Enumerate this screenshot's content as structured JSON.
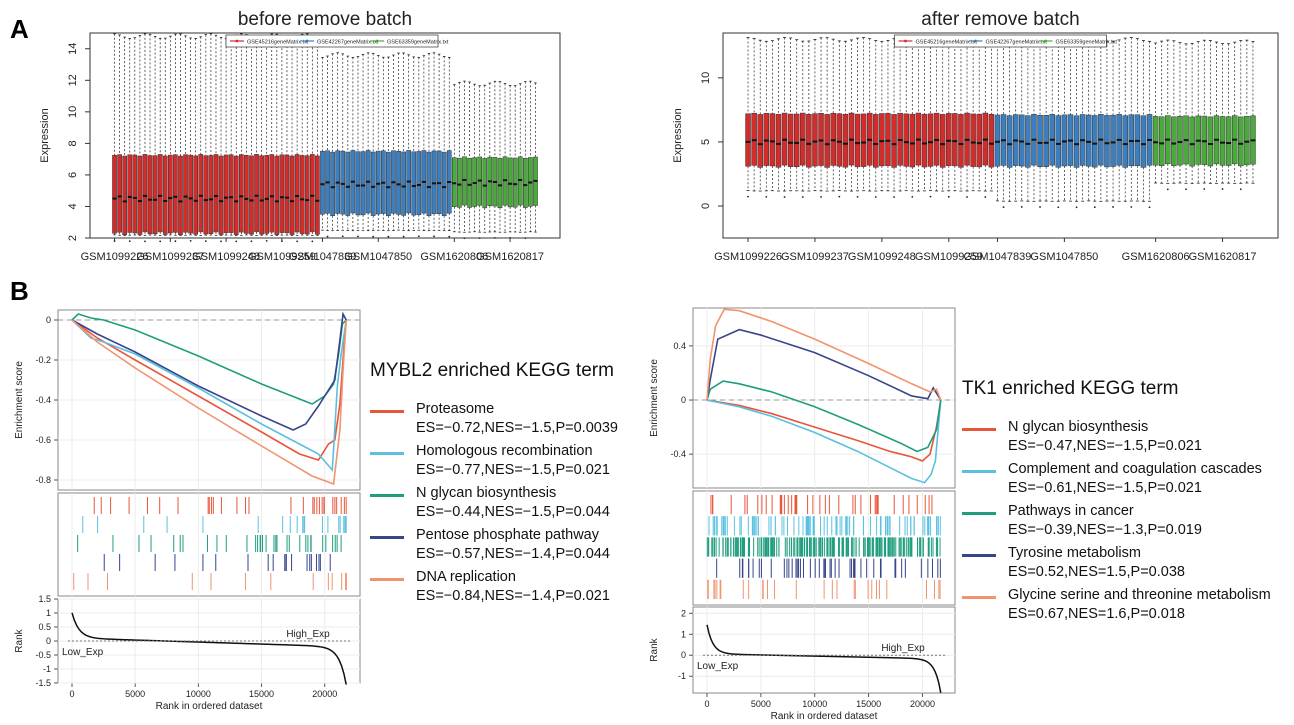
{
  "panels": {
    "a": "A",
    "b": "B"
  },
  "chart_data": [
    {
      "id": "before",
      "type": "boxplot",
      "title": "before remove batch",
      "ylabel": "Expression",
      "ylim": [
        2,
        15
      ],
      "yticks": [
        2,
        4,
        6,
        8,
        10,
        12,
        14
      ],
      "xticklabels": [
        "GSM1099226",
        "GSM1099237",
        "GSM1099248",
        "GSM1099259",
        "GSM1047839",
        "GSM1047850",
        "GSM1620806",
        "GSM1620817"
      ],
      "legend": [
        "GSE45216geneMatrix.txt",
        "GSE42267geneMatrix.txt",
        "GSE63359geneMatrix.txt"
      ],
      "legend_position": "top-center",
      "groups": [
        {
          "name": "GSE45216geneMatrix.txt",
          "color": "#d42b2b",
          "count": 41,
          "q1": 2.3,
          "q3": 7.25,
          "median": 4.5,
          "whisker_low": 2.2,
          "whisker_high": 14.8
        },
        {
          "name": "GSE42267geneMatrix.txt",
          "color": "#3b7fc0",
          "count": 26,
          "q1": 3.5,
          "q3": 7.5,
          "median": 5.4,
          "whisker_low": 2.5,
          "whisker_high": 13.6
        },
        {
          "name": "GSE63359geneMatrix.txt",
          "color": "#4aab3c",
          "count": 17,
          "q1": 4.0,
          "q3": 7.1,
          "median": 5.5,
          "whisker_low": 2.4,
          "whisker_high": 11.8
        }
      ]
    },
    {
      "id": "after",
      "type": "boxplot",
      "title": "after remove batch",
      "ylabel": "Expression",
      "ylim": [
        -2.5,
        13.5
      ],
      "yticks": [
        0,
        5,
        10
      ],
      "xticklabels": [
        "GSM1099226",
        "GSM1099237",
        "GSM1099248",
        "GSM1099259",
        "GSM1047839",
        "GSM1047850",
        "GSM1620806",
        "GSM1620817"
      ],
      "legend": [
        "GSE45216geneMatrix.txt",
        "GSE42267geneMatrix.txt",
        "GSE63359geneMatrix.txt"
      ],
      "legend_position": "top-center",
      "groups": [
        {
          "name": "GSE45216geneMatrix.txt",
          "color": "#d42b2b",
          "count": 41,
          "q1": 3.1,
          "q3": 7.2,
          "median": 5.0,
          "whisker_low": 1.2,
          "whisker_high": 13.0
        },
        {
          "name": "GSE42267geneMatrix.txt",
          "color": "#3b7fc0",
          "count": 26,
          "q1": 3.1,
          "q3": 7.1,
          "median": 5.0,
          "whisker_low": 0.4,
          "whisker_high": 13.0
        },
        {
          "name": "GSE63359geneMatrix.txt",
          "color": "#4aab3c",
          "count": 17,
          "q1": 3.2,
          "q3": 7.0,
          "median": 5.0,
          "whisker_low": 1.8,
          "whisker_high": 12.8
        }
      ]
    },
    {
      "id": "gsea1",
      "type": "line",
      "ylabel": "Enrichment score",
      "ylim": [
        -0.85,
        0.05
      ],
      "yticks": [
        0.0,
        -0.2,
        -0.4,
        -0.6,
        -0.8
      ],
      "xlim": [
        0,
        22000
      ],
      "xticks": [
        0,
        5000,
        10000,
        15000,
        20000
      ],
      "xlabel": "Rank in ordered dataset",
      "rank_ylabel": "Rank",
      "rank_ylim": [
        -1.5,
        1.5
      ],
      "rank_yticks": [
        1.5,
        1.0,
        0.5,
        0.0,
        -0.5,
        -1.0,
        -1.5
      ],
      "rank_annotations": {
        "low": "Low_Exp",
        "high": "High_Exp"
      },
      "legend_title": "MYBL2 enriched KEGG term",
      "series": [
        {
          "name": "Proteasome",
          "stats": "ES=−0.72,NES=−1.5,P=0.0039",
          "color": "#e8553a",
          "x": [
            0,
            2000,
            5000,
            10000,
            15000,
            18000,
            19500,
            20300,
            20800,
            21200,
            21500,
            21700
          ],
          "y": [
            0,
            -0.09,
            -0.2,
            -0.38,
            -0.56,
            -0.67,
            -0.7,
            -0.62,
            -0.6,
            -0.42,
            -0.15,
            0
          ]
        },
        {
          "name": "Homologous recombination",
          "stats": "ES=−0.77,NES=−1.5,P=0.021",
          "color": "#5bc0e0",
          "x": [
            0,
            1500,
            2500,
            5000,
            10000,
            15000,
            18000,
            19500,
            20600,
            21000,
            21300,
            21700
          ],
          "y": [
            0,
            -0.09,
            -0.11,
            -0.17,
            -0.34,
            -0.52,
            -0.62,
            -0.67,
            -0.75,
            -0.33,
            -0.17,
            0
          ]
        },
        {
          "name": "N glycan biosynthesis",
          "stats": "ES=−0.44,NES=−1.5,P=0.044",
          "color": "#1f9e7e",
          "x": [
            0,
            500,
            1500,
            2500,
            5000,
            10000,
            15000,
            19000,
            20000,
            20700,
            21100,
            21400,
            21700
          ],
          "y": [
            0,
            0.03,
            0.01,
            0.0,
            -0.05,
            -0.18,
            -0.32,
            -0.42,
            -0.38,
            -0.32,
            -0.17,
            -0.02,
            0
          ]
        },
        {
          "name": "Pentose phosphate pathway",
          "stats": "ES=−0.57,NES=−1.4,P=0.044",
          "color": "#37458a",
          "x": [
            0,
            2000,
            5000,
            10000,
            15000,
            17500,
            18500,
            19500,
            20300,
            20800,
            21200,
            21450,
            21700
          ],
          "y": [
            0,
            -0.07,
            -0.16,
            -0.33,
            -0.48,
            -0.55,
            -0.52,
            -0.43,
            -0.35,
            -0.3,
            -0.1,
            0.03,
            0
          ]
        },
        {
          "name": "DNA replication",
          "stats": "ES=−0.84,NES=−1.4,P=0.021",
          "color": "#f0946e",
          "x": [
            0,
            2000,
            5000,
            10000,
            15000,
            19000,
            20700,
            21200,
            21450,
            21700
          ],
          "y": [
            0,
            -0.11,
            -0.24,
            -0.44,
            -0.63,
            -0.78,
            -0.82,
            -0.55,
            -0.25,
            0
          ]
        }
      ]
    },
    {
      "id": "gsea2",
      "type": "line",
      "ylabel": "Enrichment score",
      "ylim": [
        -0.65,
        0.68
      ],
      "yticks": [
        0.4,
        0.0,
        -0.4
      ],
      "xlim": [
        0,
        22000
      ],
      "xticks": [
        0,
        5000,
        10000,
        15000,
        20000
      ],
      "xlabel": "Rank in ordered dataset",
      "rank_ylabel": "Rank",
      "rank_ylim": [
        -1.8,
        2.3
      ],
      "rank_yticks": [
        2,
        1,
        0,
        -1
      ],
      "rank_annotations": {
        "low": "Low_Exp",
        "high": "High_Exp"
      },
      "legend_title": "TK1 enriched KEGG term",
      "series": [
        {
          "name": "N glycan biosynthesis",
          "stats": "ES=−0.47,NES=−1.5,P=0.021",
          "color": "#e8553a",
          "x": [
            0,
            3000,
            6000,
            10000,
            14000,
            17000,
            19000,
            20000,
            20700,
            21300,
            21700
          ],
          "y": [
            0,
            -0.04,
            -0.1,
            -0.2,
            -0.3,
            -0.38,
            -0.42,
            -0.45,
            -0.4,
            -0.2,
            0
          ]
        },
        {
          "name": "Complement and coagulation cascades",
          "stats": "ES=−0.61,NES=−1.5,P=0.021",
          "color": "#5bc0e0",
          "x": [
            0,
            3000,
            6000,
            10000,
            14000,
            17000,
            19000,
            20200,
            20800,
            21200,
            21700
          ],
          "y": [
            0,
            -0.05,
            -0.12,
            -0.24,
            -0.38,
            -0.5,
            -0.58,
            -0.61,
            -0.55,
            -0.45,
            0
          ]
        },
        {
          "name": "Pathways in cancer",
          "stats": "ES=−0.39,NES=−1.3,P=0.019",
          "color": "#1f9e7e",
          "x": [
            0,
            300,
            1500,
            3000,
            6000,
            10000,
            14000,
            18000,
            19500,
            20500,
            21300,
            21700
          ],
          "y": [
            0,
            0.08,
            0.14,
            0.12,
            0.06,
            -0.05,
            -0.18,
            -0.32,
            -0.38,
            -0.35,
            -0.22,
            0
          ]
        },
        {
          "name": "Tyrosine metabolism",
          "stats": "ES=0.52,NES=1.5,P=0.038",
          "color": "#37458a",
          "x": [
            0,
            300,
            1000,
            3000,
            5000,
            10000,
            15000,
            19000,
            20500,
            21000,
            21700
          ],
          "y": [
            0,
            0.15,
            0.45,
            0.52,
            0.48,
            0.35,
            0.18,
            0.03,
            0.01,
            0.09,
            0
          ]
        },
        {
          "name": "Glycine serine and threonine metabolism",
          "stats": "ES=0.67,NES=1.6,P=0.018",
          "color": "#f0946e",
          "x": [
            0,
            300,
            800,
            1600,
            3000,
            6000,
            10000,
            15000,
            19000,
            20700,
            21300,
            21700
          ],
          "y": [
            0,
            0.3,
            0.55,
            0.67,
            0.66,
            0.58,
            0.45,
            0.27,
            0.12,
            0.06,
            0.08,
            0
          ]
        }
      ]
    }
  ]
}
